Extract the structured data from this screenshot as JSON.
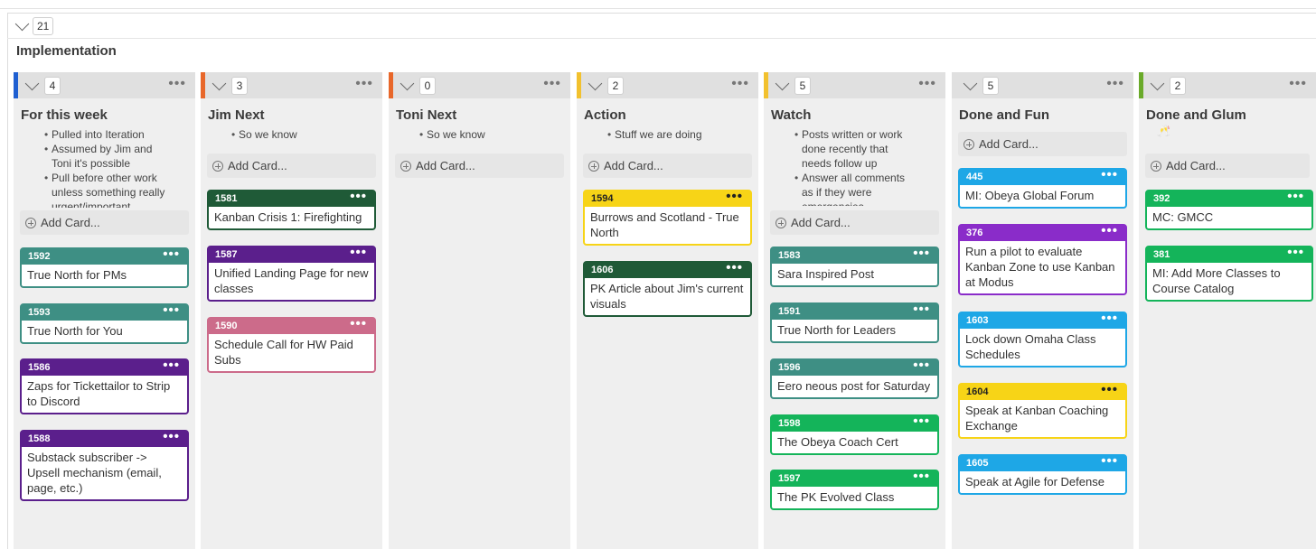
{
  "board": {
    "lane": {
      "collapse_count": "21",
      "title": "Implementation"
    },
    "add_card_label": "Add Card...",
    "columns": [
      {
        "count": "4",
        "title": "For this week",
        "accent": "#1f5fd1",
        "policy": [
          "Pulled into Iteration",
          "Assumed by Jim and Toni it's possible",
          "Pull before other work unless something really urgent/important"
        ],
        "cards": [
          {
            "id": "1592",
            "title": "True North for PMs",
            "color": "#3e8f84"
          },
          {
            "id": "1593",
            "title": "True North for You",
            "color": "#3e8f84"
          },
          {
            "id": "1586",
            "title": "Zaps for Tickettailor to Strip to Discord",
            "color": "#5b1f8c"
          },
          {
            "id": "1588",
            "title": "Substack subscriber -> Upsell mechanism (email, page, etc.)",
            "color": "#5b1f8c"
          }
        ]
      },
      {
        "count": "3",
        "title": "Jim Next",
        "accent": "#e8672a",
        "policy": [
          "So we know"
        ],
        "cards": [
          {
            "id": "1581",
            "title": "Kanban Crisis 1: Firefighting",
            "color": "#1f5a37"
          },
          {
            "id": "1587",
            "title": "Unified Landing Page for new classes",
            "color": "#5b1f8c"
          },
          {
            "id": "1590",
            "title": "Schedule Call for HW Paid Subs",
            "color": "#cc6b8a"
          }
        ]
      },
      {
        "count": "0",
        "title": "Toni Next",
        "accent": "#e8672a",
        "policy": [
          "So we know"
        ],
        "cards": []
      },
      {
        "count": "2",
        "title": "Action",
        "accent": "#f2c12e",
        "policy": [
          "Stuff we are doing"
        ],
        "cards": [
          {
            "id": "1594",
            "title": "Burrows and Scotland - True North",
            "color": "#f7d417"
          },
          {
            "id": "1606",
            "title": "PK Article about Jim's current visuals",
            "color": "#1f5a37"
          }
        ]
      },
      {
        "count": "5",
        "title": "Watch",
        "accent": "#f2c12e",
        "policy": [
          "Posts written or work done recently that needs follow up",
          "Answer all comments as if they were emergencies"
        ],
        "cards": [
          {
            "id": "1583",
            "title": "Sara Inspired Post",
            "color": "#3e8f84"
          },
          {
            "id": "1591",
            "title": "True North for Leaders",
            "color": "#3e8f84"
          },
          {
            "id": "1596",
            "title": "Eero neous post for Saturday",
            "color": "#3e8f84"
          },
          {
            "id": "1598",
            "title": "The Obeya Coach Cert",
            "color": "#14b45a"
          },
          {
            "id": "1597",
            "title": "The PK Evolved Class",
            "color": "#14b45a"
          }
        ]
      },
      {
        "count": "5",
        "title": "Done and Fun",
        "accent": "",
        "policy": [],
        "cards": [
          {
            "id": "445",
            "title": "MI: Obeya Global Forum",
            "color": "#1ea7e6"
          },
          {
            "id": "376",
            "title": "Run a pilot to evaluate Kanban Zone to use Kanban at Modus",
            "color": "#8a2cc9"
          },
          {
            "id": "1603",
            "title": "Lock down Omaha Class Schedules",
            "color": "#1ea7e6"
          },
          {
            "id": "1604",
            "title": "Speak at Kanban Coaching Exchange",
            "color": "#f7d417"
          },
          {
            "id": "1605",
            "title": "Speak at Agile for Defense",
            "color": "#1ea7e6"
          }
        ]
      },
      {
        "count": "2",
        "title": "Done and Glum",
        "accent": "#6aaa2a",
        "emoji": "🥂",
        "policy": [],
        "cards": [
          {
            "id": "392",
            "title": "MC: GMCC",
            "color": "#14b45a"
          },
          {
            "id": "381",
            "title": "MI: Add More Classes to Course Catalog",
            "color": "#14b45a"
          }
        ]
      }
    ]
  }
}
